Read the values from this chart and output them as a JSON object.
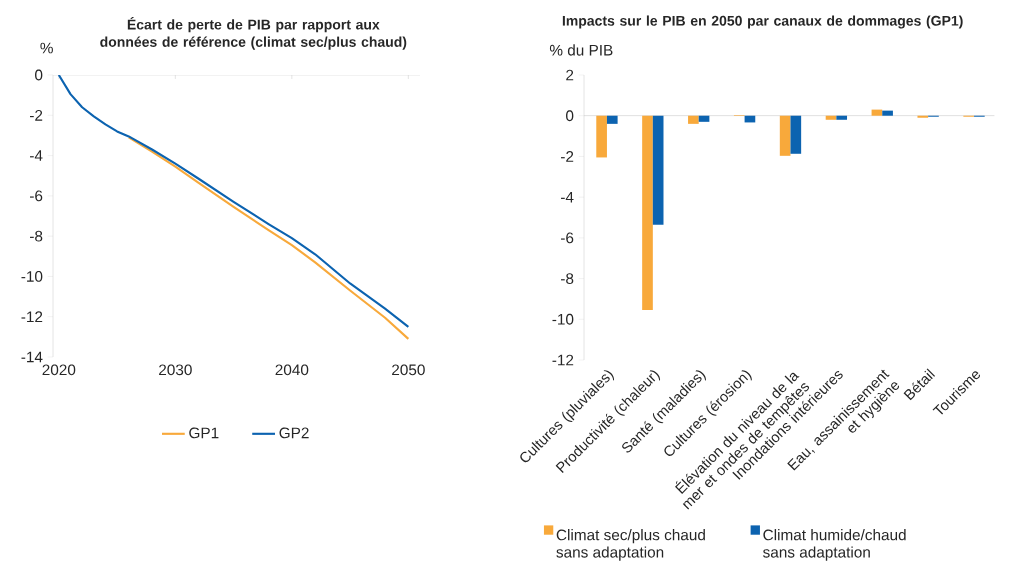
{
  "chart_data": [
    {
      "type": "line",
      "title": "Écart de perte de PIB par rapport aux données de référence (climat sec/plus chaud)",
      "ylabel": "%",
      "xlim": [
        2019.5,
        2051
      ],
      "ylim": [
        -14,
        0
      ],
      "xticks": [
        2020,
        2030,
        2040,
        2050
      ],
      "yticks": [
        -14,
        -12,
        -10,
        -8,
        -6,
        -4,
        -2,
        0
      ],
      "legend": "bottom",
      "series": [
        {
          "name": "GP1",
          "color": "#f8a93b",
          "x": [
            2026,
            2028,
            2030,
            2032,
            2035,
            2038,
            2040,
            2042,
            2045,
            2048,
            2050
          ],
          "values": [
            -3.1,
            -3.8,
            -4.55,
            -5.35,
            -6.55,
            -7.7,
            -8.45,
            -9.3,
            -10.7,
            -12.05,
            -13.1
          ]
        },
        {
          "name": "GP2",
          "color": "#0c63b0",
          "x": [
            2020,
            2021,
            2022,
            2023,
            2024,
            2025,
            2026,
            2028,
            2030,
            2032,
            2035,
            2038,
            2040,
            2042,
            2045,
            2048,
            2050
          ],
          "values": [
            0,
            -0.95,
            -1.6,
            -2.05,
            -2.45,
            -2.8,
            -3.05,
            -3.7,
            -4.4,
            -5.15,
            -6.3,
            -7.4,
            -8.1,
            -8.9,
            -10.35,
            -11.6,
            -12.5
          ]
        }
      ]
    },
    {
      "type": "bar",
      "title": "Impacts sur le PIB en 2050 par canaux de dommages (GP1)",
      "ylabel": "% du PIB",
      "categories": [
        "Cultures (pluviales)",
        "Productivité (chaleur)",
        "Santé (maladies)",
        "Cultures (érosion)",
        "Élévation du niveau de la mer et ondes de tempêtes",
        "Inondations intérieures",
        "Eau, assainissement et hygiène",
        "Bétail",
        "Tourisme"
      ],
      "ylim": [
        -12,
        2
      ],
      "yticks": [
        -12,
        -10,
        -8,
        -6,
        -4,
        -2,
        0,
        2
      ],
      "legend": "bottom",
      "series": [
        {
          "name": "Climat sec/plus chaud sans adaptation",
          "color": "#f8a93b",
          "values": [
            -2.05,
            -9.55,
            -0.4,
            0.03,
            -1.97,
            -0.2,
            0.3,
            -0.1,
            -0.05
          ]
        },
        {
          "name": "Climat humide/chaud sans adaptation",
          "color": "#0c63b0",
          "values": [
            -0.4,
            -5.35,
            -0.3,
            -0.33,
            -1.87,
            -0.2,
            0.25,
            -0.05,
            -0.05
          ]
        }
      ]
    }
  ]
}
